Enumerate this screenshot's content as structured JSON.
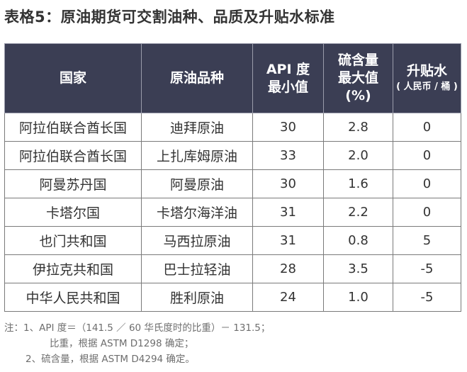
{
  "title": "表格5：原油期货可交割油种、品质及升贴水标准",
  "table": {
    "headers": [
      {
        "lines": [
          "国家"
        ]
      },
      {
        "lines": [
          "原油品种"
        ]
      },
      {
        "lines": [
          "API 度",
          "最小值"
        ]
      },
      {
        "lines": [
          "硫含量",
          "最大值",
          "(%)"
        ]
      },
      {
        "lines": [
          "升贴水"
        ],
        "sub": "( 人民币 / 桶 )"
      }
    ],
    "rows": [
      [
        "阿拉伯联合酋长国",
        "迪拜原油",
        "30",
        "2.8",
        "0"
      ],
      [
        "阿拉伯联合酋长国",
        "上扎库姆原油",
        "33",
        "2.0",
        "0"
      ],
      [
        "阿曼苏丹国",
        "阿曼原油",
        "30",
        "1.6",
        "0"
      ],
      [
        "卡塔尔国",
        "卡塔尔海洋油",
        "31",
        "2.2",
        "0"
      ],
      [
        "也门共和国",
        "马西拉原油",
        "31",
        "0.8",
        "5"
      ],
      [
        "伊拉克共和国",
        "巴士拉轻油",
        "28",
        "3.5",
        "-5"
      ],
      [
        "中华人民共和国",
        "胜利原油",
        "24",
        "1.0",
        "-5"
      ]
    ]
  },
  "notes": [
    "注：1、API 度＝（141.5 ／ 60 华氏度时的比重）－ 131.5；",
    "比重，根据 ASTM D1298 确定；",
    "2、硫含量，根据 ASTM D4294 确定。"
  ]
}
